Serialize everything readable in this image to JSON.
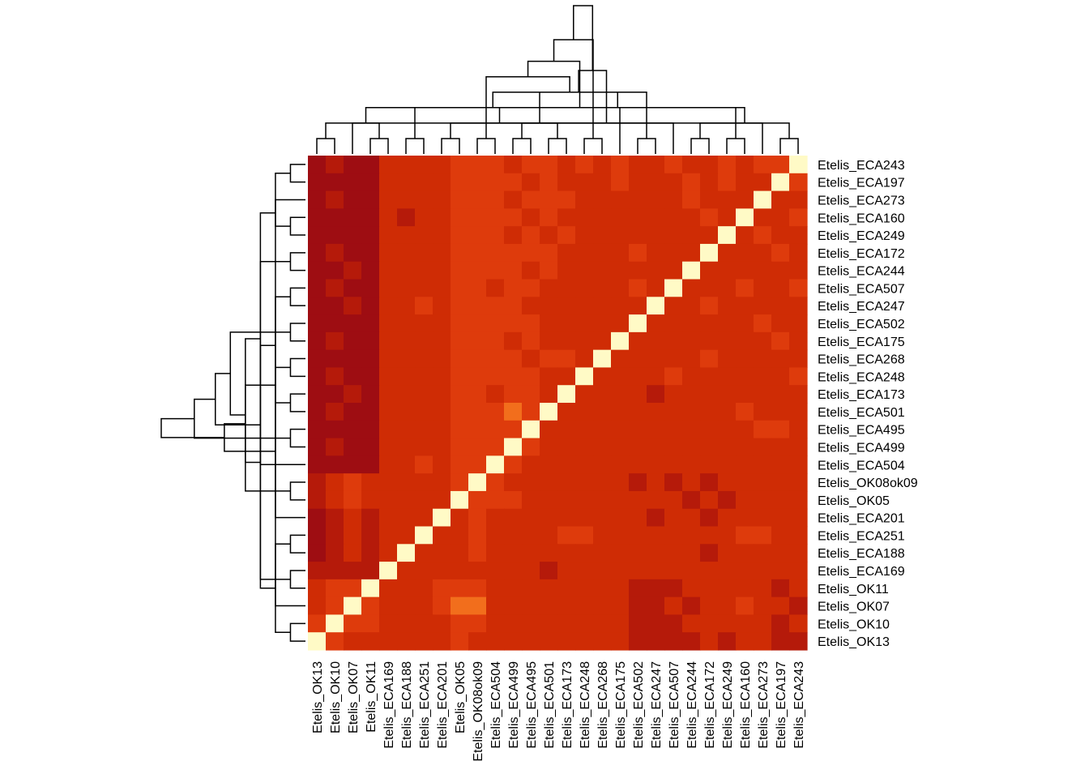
{
  "chart_data": {
    "type": "heatmap",
    "title": "",
    "xlabel": "",
    "ylabel": "",
    "grid": false,
    "legend": "none",
    "colormap": [
      "#67001f",
      "#9e0d12",
      "#b51a0a",
      "#cf2c05",
      "#de3b0c",
      "#f26e1c",
      "#fffac6"
    ],
    "rows": [
      "Etelis_ECA243",
      "Etelis_ECA197",
      "Etelis_ECA273",
      "Etelis_ECA160",
      "Etelis_ECA249",
      "Etelis_ECA172",
      "Etelis_ECA244",
      "Etelis_ECA507",
      "Etelis_ECA247",
      "Etelis_ECA502",
      "Etelis_ECA175",
      "Etelis_ECA268",
      "Etelis_ECA248",
      "Etelis_ECA173",
      "Etelis_ECA501",
      "Etelis_ECA495",
      "Etelis_ECA499",
      "Etelis_ECA504",
      "Etelis_OK08ok09",
      "Etelis_OK05",
      "Etelis_ECA201",
      "Etelis_ECA251",
      "Etelis_ECA188",
      "Etelis_ECA169",
      "Etelis_OK11",
      "Etelis_OK07",
      "Etelis_OK10",
      "Etelis_OK13"
    ],
    "columns": [
      "Etelis_OK13",
      "Etelis_OK10",
      "Etelis_OK07",
      "Etelis_OK11",
      "Etelis_ECA169",
      "Etelis_ECA188",
      "Etelis_ECA251",
      "Etelis_ECA201",
      "Etelis_OK05",
      "Etelis_OK08ok09",
      "Etelis_ECA504",
      "Etelis_ECA499",
      "Etelis_ECA495",
      "Etelis_ECA501",
      "Etelis_ECA173",
      "Etelis_ECA248",
      "Etelis_ECA268",
      "Etelis_ECA175",
      "Etelis_ECA502",
      "Etelis_ECA247",
      "Etelis_ECA507",
      "Etelis_ECA244",
      "Etelis_ECA172",
      "Etelis_ECA249",
      "Etelis_ECA160",
      "Etelis_ECA273",
      "Etelis_ECA197",
      "Etelis_ECA243"
    ],
    "row_dendrogram": [
      [
        4,
        5
      ],
      [
        27,
        28
      ],
      [
        22,
        23
      ],
      [
        19,
        20
      ],
      [
        1,
        2
      ],
      [
        3,
        29
      ],
      [
        8,
        9
      ],
      [
        18,
        34
      ],
      [
        12,
        13
      ],
      [
        14,
        15
      ],
      [
        10,
        11
      ],
      [
        21,
        33
      ],
      [
        30,
        31
      ],
      [
        6,
        7
      ],
      [
        37,
        38
      ],
      [
        24,
        25
      ],
      [
        16,
        17
      ],
      [
        26,
        35
      ],
      [
        40,
        44
      ],
      [
        41,
        42
      ],
      [
        32,
        36
      ],
      [
        39,
        49
      ],
      [
        43,
        47
      ],
      [
        48,
        50
      ],
      [
        45,
        52
      ],
      [
        46,
        51
      ],
      [
        53,
        54
      ]
    ],
    "col_dendrogram": [
      [
        4,
        5
      ],
      [
        27,
        28
      ],
      [
        22,
        23
      ],
      [
        19,
        20
      ],
      [
        1,
        2
      ],
      [
        3,
        29
      ],
      [
        8,
        9
      ],
      [
        18,
        34
      ],
      [
        12,
        13
      ],
      [
        14,
        15
      ],
      [
        10,
        11
      ],
      [
        21,
        33
      ],
      [
        30,
        31
      ],
      [
        6,
        7
      ],
      [
        37,
        38
      ],
      [
        24,
        25
      ],
      [
        16,
        17
      ],
      [
        26,
        35
      ],
      [
        40,
        44
      ],
      [
        41,
        42
      ],
      [
        32,
        36
      ],
      [
        39,
        49
      ],
      [
        43,
        47
      ],
      [
        48,
        50
      ],
      [
        45,
        52
      ],
      [
        46,
        51
      ],
      [
        53,
        54
      ]
    ],
    "values": [
      [
        1,
        2,
        1,
        1,
        3,
        3,
        3,
        3,
        4,
        4,
        4,
        3,
        4,
        4,
        3,
        4,
        3,
        4,
        3,
        3,
        4,
        3,
        3,
        4,
        3,
        4,
        4,
        6
      ],
      [
        1,
        1,
        1,
        1,
        3,
        3,
        3,
        3,
        4,
        4,
        4,
        4,
        3,
        4,
        3,
        3,
        3,
        4,
        3,
        3,
        3,
        4,
        3,
        4,
        3,
        3,
        6,
        4
      ],
      [
        1,
        2,
        1,
        1,
        3,
        3,
        3,
        3,
        4,
        4,
        4,
        3,
        4,
        4,
        4,
        3,
        3,
        3,
        3,
        3,
        3,
        4,
        3,
        3,
        3,
        6,
        3,
        3
      ],
      [
        1,
        1,
        1,
        1,
        3,
        2,
        3,
        3,
        4,
        4,
        4,
        4,
        3,
        4,
        3,
        3,
        3,
        3,
        3,
        3,
        3,
        3,
        4,
        3,
        6,
        3,
        3,
        4
      ],
      [
        1,
        1,
        1,
        1,
        3,
        3,
        3,
        3,
        4,
        4,
        4,
        3,
        4,
        3,
        4,
        3,
        3,
        3,
        3,
        3,
        3,
        3,
        3,
        6,
        3,
        4,
        3,
        3
      ],
      [
        1,
        2,
        1,
        1,
        3,
        3,
        3,
        3,
        4,
        4,
        4,
        4,
        4,
        4,
        3,
        3,
        3,
        3,
        4,
        3,
        3,
        3,
        6,
        3,
        3,
        3,
        4,
        3
      ],
      [
        1,
        1,
        2,
        1,
        3,
        3,
        3,
        3,
        4,
        4,
        4,
        4,
        3,
        4,
        3,
        3,
        3,
        3,
        3,
        3,
        3,
        6,
        3,
        3,
        3,
        3,
        3,
        3
      ],
      [
        1,
        2,
        1,
        1,
        3,
        3,
        3,
        3,
        4,
        4,
        3,
        4,
        4,
        3,
        3,
        3,
        3,
        3,
        4,
        3,
        6,
        3,
        3,
        3,
        4,
        3,
        3,
        4
      ],
      [
        1,
        1,
        2,
        1,
        3,
        3,
        4,
        3,
        4,
        4,
        4,
        4,
        3,
        3,
        3,
        3,
        3,
        3,
        3,
        6,
        3,
        3,
        4,
        3,
        3,
        3,
        3,
        3
      ],
      [
        1,
        1,
        1,
        1,
        3,
        3,
        3,
        3,
        4,
        4,
        4,
        4,
        4,
        3,
        3,
        3,
        3,
        3,
        6,
        3,
        3,
        3,
        3,
        3,
        3,
        4,
        3,
        3
      ],
      [
        1,
        2,
        1,
        1,
        3,
        3,
        3,
        3,
        4,
        4,
        4,
        3,
        4,
        3,
        3,
        3,
        3,
        6,
        3,
        3,
        3,
        3,
        3,
        3,
        3,
        3,
        4,
        3
      ],
      [
        1,
        1,
        1,
        1,
        3,
        3,
        3,
        3,
        4,
        4,
        4,
        4,
        3,
        4,
        4,
        3,
        6,
        3,
        3,
        3,
        3,
        3,
        4,
        3,
        3,
        3,
        3,
        3
      ],
      [
        1,
        2,
        1,
        1,
        3,
        3,
        3,
        3,
        4,
        4,
        4,
        4,
        4,
        3,
        3,
        6,
        3,
        3,
        3,
        3,
        4,
        3,
        3,
        3,
        3,
        3,
        3,
        4
      ],
      [
        1,
        1,
        2,
        1,
        3,
        3,
        3,
        3,
        4,
        4,
        3,
        4,
        4,
        3,
        6,
        3,
        3,
        3,
        3,
        2,
        3,
        3,
        3,
        3,
        3,
        3,
        3,
        3
      ],
      [
        1,
        2,
        1,
        1,
        3,
        3,
        3,
        3,
        4,
        4,
        4,
        5,
        4,
        6,
        3,
        3,
        3,
        3,
        3,
        3,
        3,
        3,
        3,
        3,
        4,
        3,
        3,
        3
      ],
      [
        1,
        1,
        1,
        1,
        3,
        3,
        3,
        3,
        4,
        4,
        4,
        4,
        6,
        3,
        3,
        3,
        3,
        3,
        3,
        3,
        3,
        3,
        3,
        3,
        3,
        4,
        4,
        3
      ],
      [
        1,
        2,
        1,
        1,
        3,
        3,
        3,
        3,
        4,
        4,
        4,
        6,
        4,
        3,
        3,
        3,
        3,
        3,
        3,
        3,
        3,
        3,
        3,
        3,
        3,
        3,
        3,
        3
      ],
      [
        1,
        1,
        1,
        1,
        3,
        3,
        4,
        3,
        4,
        4,
        6,
        4,
        3,
        3,
        3,
        3,
        3,
        3,
        3,
        3,
        3,
        3,
        3,
        3,
        3,
        3,
        3,
        3
      ],
      [
        2,
        3,
        4,
        3,
        3,
        3,
        3,
        3,
        4,
        6,
        4,
        3,
        3,
        3,
        3,
        3,
        3,
        3,
        2,
        3,
        2,
        3,
        2,
        3,
        3,
        3,
        3,
        3
      ],
      [
        2,
        3,
        4,
        3,
        3,
        3,
        3,
        3,
        6,
        4,
        4,
        4,
        3,
        3,
        3,
        3,
        3,
        3,
        3,
        3,
        3,
        2,
        3,
        2,
        3,
        3,
        3,
        3
      ],
      [
        1,
        2,
        3,
        2,
        3,
        3,
        3,
        6,
        3,
        4,
        3,
        3,
        3,
        3,
        3,
        3,
        3,
        3,
        3,
        2,
        3,
        3,
        2,
        3,
        3,
        3,
        3,
        3
      ],
      [
        1,
        2,
        3,
        2,
        3,
        3,
        6,
        3,
        3,
        4,
        3,
        3,
        3,
        3,
        4,
        4,
        3,
        3,
        3,
        3,
        3,
        3,
        3,
        3,
        4,
        4,
        3,
        3
      ],
      [
        1,
        2,
        3,
        2,
        3,
        6,
        3,
        3,
        3,
        4,
        3,
        3,
        3,
        3,
        3,
        3,
        3,
        3,
        3,
        3,
        3,
        3,
        2,
        3,
        3,
        3,
        3,
        3
      ],
      [
        2,
        2,
        2,
        2,
        6,
        3,
        3,
        3,
        3,
        3,
        3,
        3,
        3,
        2,
        3,
        3,
        3,
        3,
        3,
        3,
        3,
        3,
        3,
        3,
        3,
        3,
        3,
        3
      ],
      [
        3,
        4,
        4,
        6,
        3,
        3,
        3,
        4,
        4,
        4,
        3,
        3,
        3,
        3,
        3,
        3,
        3,
        3,
        2,
        2,
        2,
        3,
        3,
        3,
        3,
        3,
        2,
        3
      ],
      [
        3,
        4,
        6,
        4,
        3,
        3,
        3,
        4,
        5,
        5,
        3,
        3,
        3,
        3,
        3,
        3,
        3,
        3,
        2,
        2,
        3,
        2,
        3,
        3,
        4,
        3,
        3,
        2
      ],
      [
        4,
        6,
        4,
        4,
        3,
        3,
        3,
        3,
        4,
        4,
        3,
        3,
        3,
        3,
        3,
        3,
        3,
        3,
        2,
        2,
        2,
        3,
        3,
        3,
        3,
        3,
        2,
        3
      ],
      [
        6,
        4,
        3,
        3,
        3,
        3,
        3,
        3,
        4,
        3,
        3,
        3,
        3,
        3,
        3,
        3,
        3,
        3,
        2,
        2,
        2,
        2,
        3,
        2,
        3,
        3,
        2,
        2
      ]
    ]
  }
}
